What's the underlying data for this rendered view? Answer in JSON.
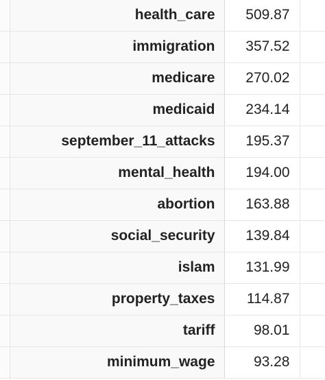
{
  "table": {
    "rows": [
      {
        "label": "health_care",
        "value": "509.87"
      },
      {
        "label": "immigration",
        "value": "357.52"
      },
      {
        "label": "medicare",
        "value": "270.02"
      },
      {
        "label": "medicaid",
        "value": "234.14"
      },
      {
        "label": "september_11_attacks",
        "value": "195.37"
      },
      {
        "label": "mental_health",
        "value": "194.00"
      },
      {
        "label": "abortion",
        "value": "163.88"
      },
      {
        "label": "social_security",
        "value": "139.84"
      },
      {
        "label": "islam",
        "value": "131.99"
      },
      {
        "label": "property_taxes",
        "value": "114.87"
      },
      {
        "label": "tariff",
        "value": "98.01"
      },
      {
        "label": "minimum_wage",
        "value": "93.28"
      }
    ]
  }
}
